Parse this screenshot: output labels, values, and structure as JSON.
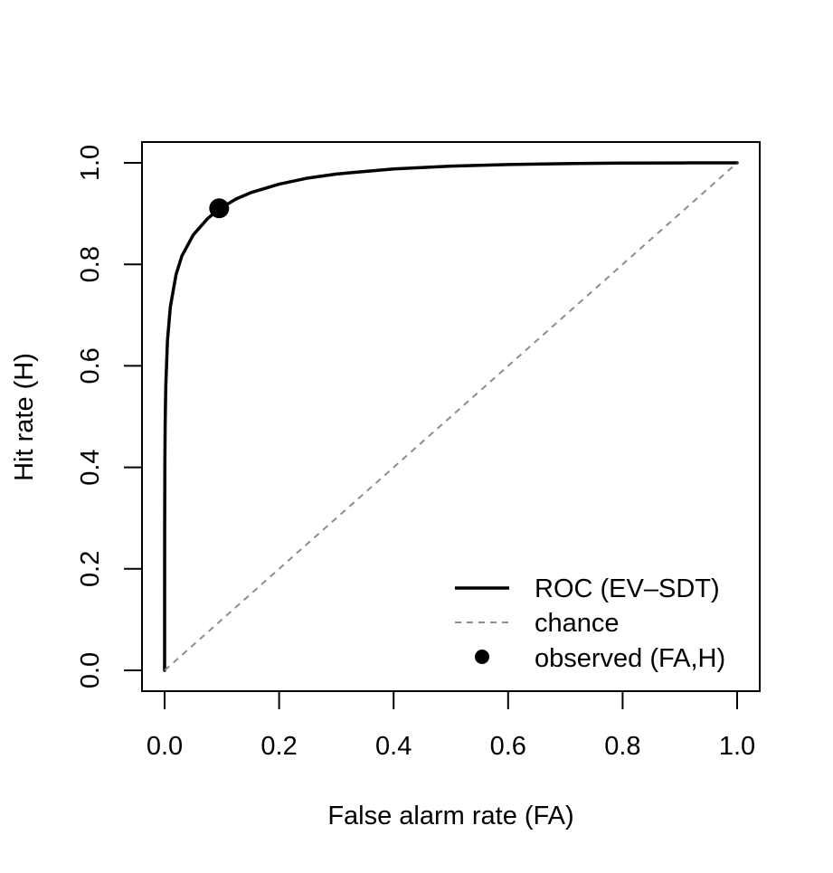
{
  "chart_data": {
    "type": "line",
    "title": "",
    "xlabel": "False alarm rate (FA)",
    "ylabel": "Hit rate (H)",
    "xlim": [
      0,
      1
    ],
    "ylim": [
      0,
      1
    ],
    "x_ticks": [
      0.0,
      0.2,
      0.4,
      0.6,
      0.8,
      1.0
    ],
    "y_ticks": [
      0.0,
      0.2,
      0.4,
      0.6,
      0.8,
      1.0
    ],
    "x_tick_labels": [
      "0.0",
      "0.2",
      "0.4",
      "0.6",
      "0.8",
      "1.0"
    ],
    "y_tick_labels": [
      "0.0",
      "0.2",
      "0.4",
      "0.6",
      "0.8",
      "1.0"
    ],
    "grid": false,
    "legend_position": "bottom-right",
    "series": [
      {
        "name": "ROC (EV–SDT)",
        "style": "solid",
        "color": "#000000",
        "x": [
          0,
          0.0001,
          0.0005,
          0.001,
          0.002,
          0.005,
          0.01,
          0.02,
          0.03,
          0.05,
          0.075,
          0.0953,
          0.125,
          0.15,
          0.2,
          0.25,
          0.3,
          0.4,
          0.5,
          0.6,
          0.7,
          0.8,
          0.9,
          1.0
        ],
        "y": [
          0,
          0.276,
          0.419,
          0.488,
          0.559,
          0.65,
          0.716,
          0.78,
          0.816,
          0.858,
          0.89,
          0.909,
          0.929,
          0.941,
          0.958,
          0.97,
          0.978,
          0.988,
          0.9935,
          0.9966,
          0.9985,
          0.9995,
          0.99987,
          1.0
        ]
      },
      {
        "name": "chance",
        "style": "dashed",
        "color": "#8c8c8c",
        "x": [
          0,
          1
        ],
        "y": [
          0,
          1
        ]
      },
      {
        "name": "observed (FA,H)",
        "style": "point",
        "color": "#000000",
        "x": [
          0.0953
        ],
        "y": [
          0.9104
        ]
      }
    ]
  }
}
